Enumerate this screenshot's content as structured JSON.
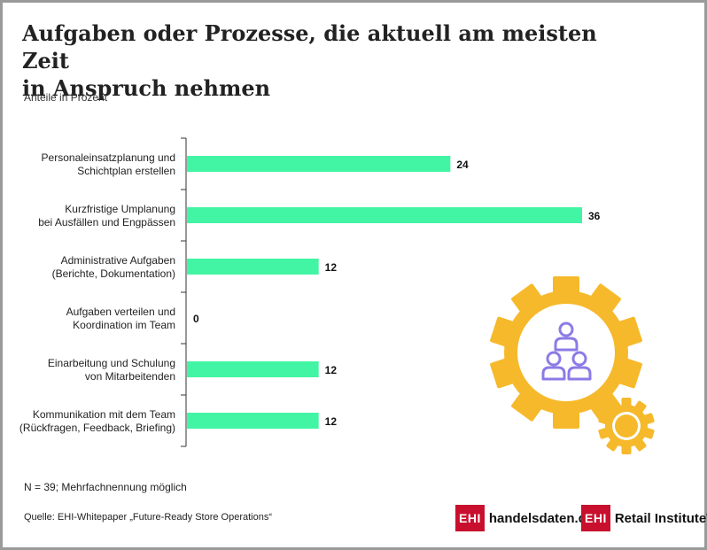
{
  "page": {
    "title_line1": "Aufgaben oder Prozesse, die aktuell am meisten Zeit",
    "title_line2": "in Anspruch nehmen",
    "subtitle": "Anteile in Prozent",
    "note": "N = 39; Mehrfachnennung möglich",
    "source": "Quelle: EHI-Whitepaper „Future-Ready Store Operations“",
    "logo1_box": "EHI",
    "logo1_text": "handelsdaten.de",
    "logo2_box": "EHI",
    "logo2_text": "Retail Institute",
    "logo2_reg": "®"
  },
  "colors": {
    "bar": "#41f5a4",
    "gear_large": "#f6b92b",
    "gear_small": "#f6b92b",
    "people_icon": "#8c7be6",
    "brand_red": "#c8102e"
  },
  "icons": [
    "gear-icon",
    "people-hierarchy-icon"
  ],
  "chart_data": {
    "type": "bar",
    "orientation": "horizontal",
    "unit": "Prozent",
    "categories": [
      [
        "Personaleinsatzplanung und",
        "Schichtplan erstellen"
      ],
      [
        "Kurzfristige Umplanung",
        "bei Ausfällen und Engpässen"
      ],
      [
        "Administrative Aufgaben",
        "(Berichte, Dokumentation)"
      ],
      [
        "Aufgaben verteilen und",
        "Koordination im Team"
      ],
      [
        "Einarbeitung und Schulung",
        "von Mitarbeitenden"
      ],
      [
        "Kommunikation mit dem Team",
        "(Rückfragen, Feedback, Briefing)"
      ]
    ],
    "values": [
      24,
      36,
      12,
      0,
      12,
      12
    ],
    "data_labels": [
      "24",
      "36",
      "12",
      "0",
      "12",
      "12"
    ],
    "xlim": [
      0,
      36
    ],
    "grid": false,
    "legend": "none"
  }
}
